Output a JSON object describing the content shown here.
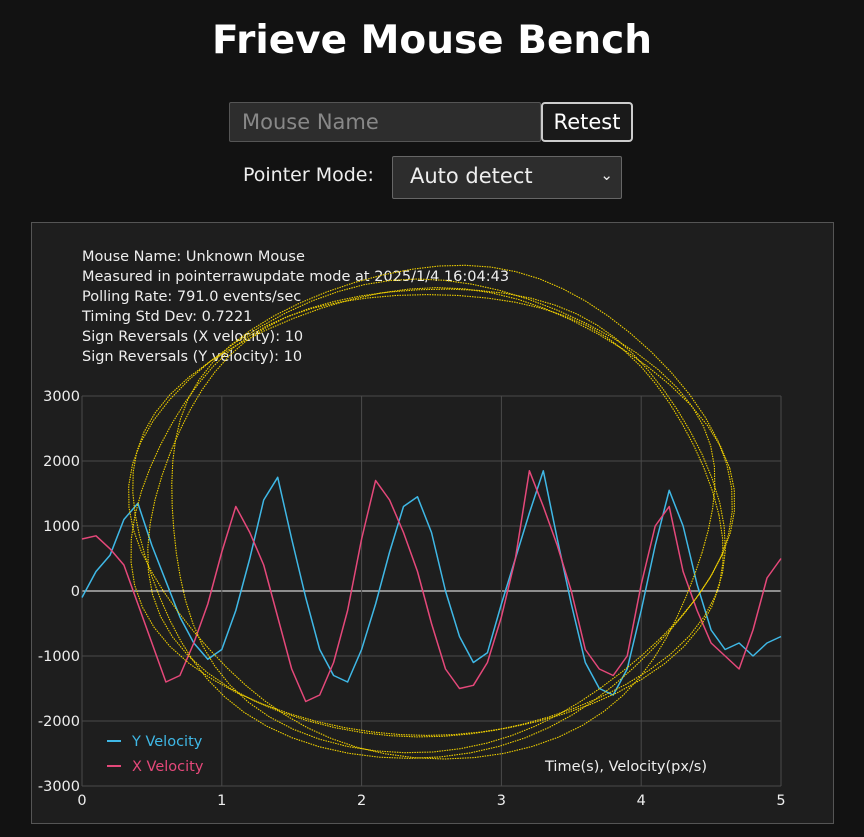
{
  "page": {
    "title": "Frieve Mouse Bench",
    "mouse_name_placeholder": "Mouse Name",
    "retest_label": "Retest",
    "pointer_mode_label": "Pointer Mode:",
    "pointer_mode_value": "Auto detect"
  },
  "info": {
    "mouse_name": "Mouse Name: Unknown Mouse",
    "measured": "Measured in pointerrawupdate mode at 2025/1/4 16:04:43",
    "polling": "Polling Rate: 791.0 events/sec",
    "timing": "Timing Std Dev: 0.7221",
    "rev_x": "Sign Reversals (X velocity): 10",
    "rev_y": "Sign Reversals (Y velocity): 10"
  },
  "colors": {
    "y_velocity": "#3fb8e6",
    "x_velocity": "#e5487a",
    "trace": "#f0d000"
  },
  "chart_data": {
    "type": "line",
    "xlabel": "Time(s), Velocity(px/s)",
    "xlim": [
      0,
      5
    ],
    "ylim": [
      -3000,
      3000
    ],
    "x_ticks": [
      "0",
      "1",
      "2",
      "3",
      "4",
      "5"
    ],
    "y_ticks": [
      "3000",
      "2000",
      "1000",
      "0",
      "-1000",
      "-2000",
      "-3000"
    ],
    "grid": true,
    "legend": "bottom-left",
    "series": [
      {
        "name": "Y Velocity",
        "x": [
          0,
          0.1,
          0.2,
          0.3,
          0.4,
          0.5,
          0.6,
          0.7,
          0.8,
          0.9,
          1.0,
          1.1,
          1.2,
          1.3,
          1.4,
          1.5,
          1.6,
          1.7,
          1.8,
          1.9,
          2.0,
          2.1,
          2.2,
          2.3,
          2.4,
          2.5,
          2.6,
          2.7,
          2.8,
          2.9,
          3.0,
          3.1,
          3.2,
          3.3,
          3.4,
          3.5,
          3.6,
          3.7,
          3.8,
          3.9,
          4.0,
          4.1,
          4.2,
          4.3,
          4.4,
          4.5,
          4.6,
          4.7,
          4.8,
          4.9,
          5.0
        ],
        "values": [
          -100,
          300,
          550,
          1100,
          1350,
          700,
          150,
          -400,
          -800,
          -1050,
          -900,
          -300,
          500,
          1400,
          1750,
          800,
          -100,
          -900,
          -1300,
          -1400,
          -900,
          -200,
          600,
          1300,
          1450,
          900,
          0,
          -700,
          -1100,
          -950,
          -200,
          500,
          1200,
          1850,
          800,
          -200,
          -1100,
          -1500,
          -1600,
          -1200,
          -300,
          700,
          1550,
          1000,
          100,
          -600,
          -900,
          -800,
          -1000,
          -800,
          -700
        ]
      },
      {
        "name": "X Velocity",
        "x": [
          0,
          0.1,
          0.2,
          0.3,
          0.4,
          0.5,
          0.6,
          0.7,
          0.8,
          0.9,
          1.0,
          1.1,
          1.2,
          1.3,
          1.4,
          1.5,
          1.6,
          1.7,
          1.8,
          1.9,
          2.0,
          2.1,
          2.2,
          2.3,
          2.4,
          2.5,
          2.6,
          2.7,
          2.8,
          2.9,
          3.0,
          3.1,
          3.2,
          3.3,
          3.4,
          3.5,
          3.6,
          3.7,
          3.8,
          3.9,
          4.0,
          4.1,
          4.2,
          4.3,
          4.4,
          4.5,
          4.6,
          4.7,
          4.8,
          4.9,
          5.0
        ],
        "values": [
          800,
          850,
          650,
          400,
          -200,
          -800,
          -1400,
          -1300,
          -800,
          -200,
          600,
          1300,
          900,
          400,
          -400,
          -1200,
          -1700,
          -1600,
          -1100,
          -300,
          800,
          1700,
          1400,
          900,
          300,
          -500,
          -1200,
          -1500,
          -1450,
          -1100,
          -400,
          500,
          1850,
          1300,
          700,
          0,
          -900,
          -1200,
          -1300,
          -1000,
          100,
          1000,
          1300,
          300,
          -300,
          -800,
          -1000,
          -1200,
          -600,
          200,
          500
        ]
      }
    ]
  }
}
